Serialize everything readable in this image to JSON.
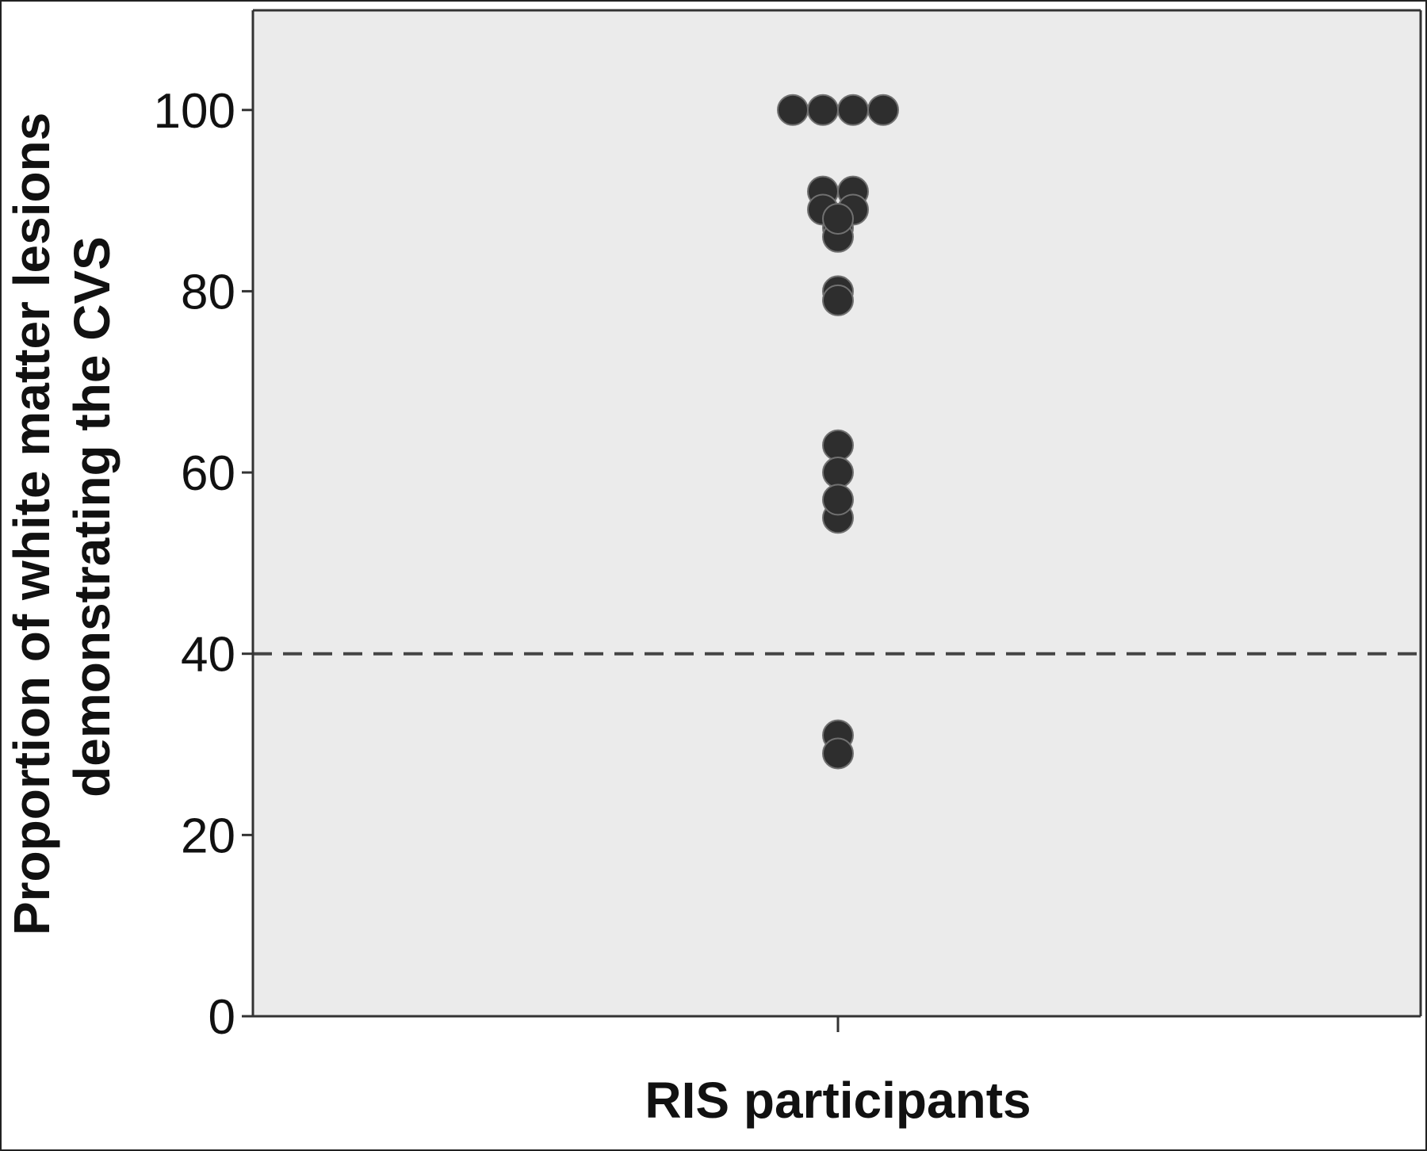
{
  "chart_data": {
    "type": "scatter",
    "ylabel": [
      "Proportion of white matter lesions",
      "demonstrating the CVS"
    ],
    "xlabel": "RIS participants",
    "ylim": [
      0,
      111
    ],
    "yticks": [
      0,
      20,
      40,
      60,
      80,
      100
    ],
    "xticks": [
      ""
    ],
    "grid": false,
    "legend": "none",
    "reference_line": {
      "y": 40,
      "style": "dashed"
    },
    "colors": {
      "background": "#ebebeb",
      "point_fill": "#2e2e2e",
      "point_stroke": "#707070",
      "reference_line": "#444444",
      "axis": "#333333"
    },
    "series": [
      {
        "points": [
          {
            "group": 0,
            "offset": -3,
            "y": 100
          },
          {
            "group": 0,
            "offset": -1,
            "y": 100
          },
          {
            "group": 0,
            "offset": 1,
            "y": 100
          },
          {
            "group": 0,
            "offset": 3,
            "y": 100
          },
          {
            "group": 0,
            "offset": -1,
            "y": 91
          },
          {
            "group": 0,
            "offset": 1,
            "y": 91
          },
          {
            "group": 0,
            "offset": -1,
            "y": 89
          },
          {
            "group": 0,
            "offset": 1,
            "y": 89
          },
          {
            "group": 0,
            "offset": 0,
            "y": 87
          },
          {
            "group": 0,
            "offset": 0,
            "y": 86
          },
          {
            "group": 0,
            "offset": 0,
            "y": 88
          },
          {
            "group": 0,
            "offset": 0,
            "y": 80
          },
          {
            "group": 0,
            "offset": 0,
            "y": 79
          },
          {
            "group": 0,
            "offset": 0,
            "y": 63
          },
          {
            "group": 0,
            "offset": 0,
            "y": 60
          },
          {
            "group": 0,
            "offset": 0,
            "y": 55
          },
          {
            "group": 0,
            "offset": 0,
            "y": 57
          },
          {
            "group": 0,
            "offset": 0,
            "y": 31
          },
          {
            "group": 0,
            "offset": 0,
            "y": 29
          }
        ]
      }
    ]
  }
}
